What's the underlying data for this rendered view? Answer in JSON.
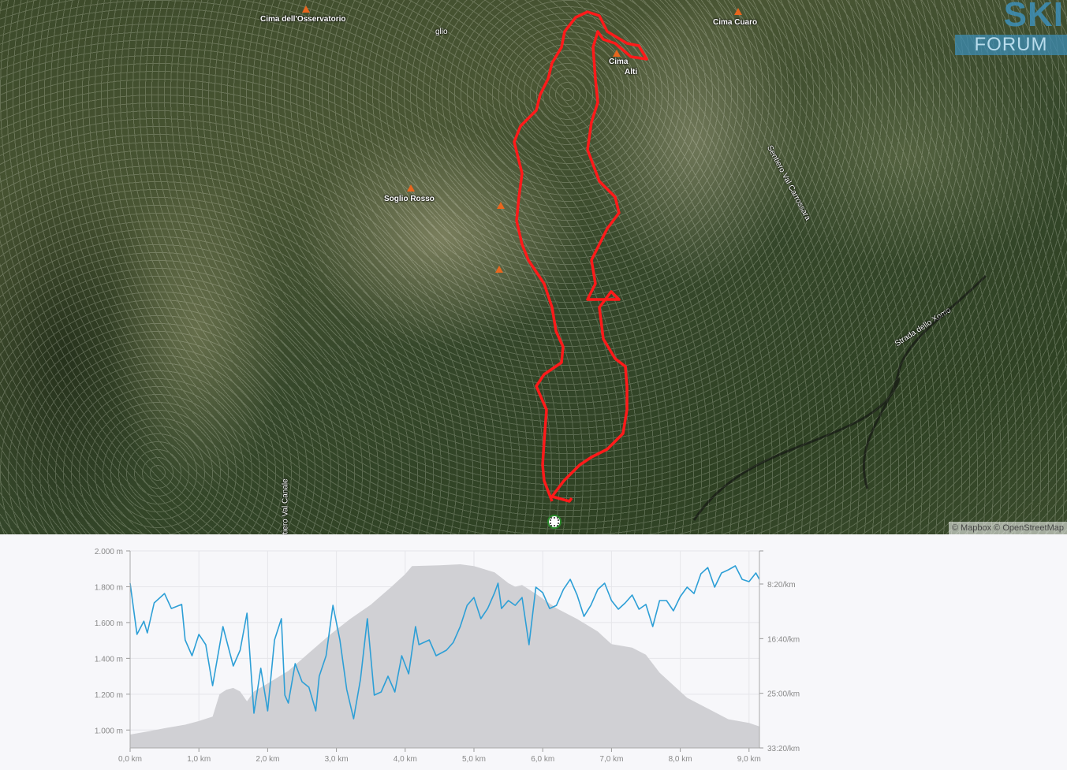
{
  "map": {
    "peaks": [
      {
        "name": "Cima dell'Osservatorio"
      },
      {
        "name": "Cima Cuaro"
      },
      {
        "name": "Soglio Rosso"
      },
      {
        "name": "Cima ... Alti"
      }
    ],
    "place_fragment": "glio",
    "cima_alti_line1": "Cima",
    "cima_alti_line2": "Alti",
    "roads": [
      "Sentiero Val Carrossara",
      "Strada dello Xomo",
      "Sentiero Val Canale"
    ],
    "route_color": "#ff1a1a",
    "logo": {
      "line1": "SKI",
      "line2": "FORUM"
    },
    "attribution": "© Mapbox © OpenStreetMap"
  },
  "chart_data": {
    "type": "area+line",
    "x_unit": "km",
    "xlim": [
      0,
      9.15
    ],
    "x_ticks": [
      "0,0 km",
      "1,0 km",
      "2,0 km",
      "3,0 km",
      "4,0 km",
      "5,0 km",
      "6,0 km",
      "7,0 km",
      "8,0 km",
      "9,0 km"
    ],
    "y_left_ticks": [
      "2.000 m",
      "1.800 m",
      "1.600 m",
      "1.400 m",
      "1.200 m",
      "1.000 m"
    ],
    "y_left_lim": [
      900,
      2000
    ],
    "y_right_ticks": [
      "8:20/km",
      "16:40/km",
      "25:00/km",
      "33:20/km"
    ],
    "y_right_lim": [
      "3:17",
      "33:20"
    ],
    "grid": true,
    "elevation_color": "#d0d0d4",
    "pace_color": "#2d9fd6",
    "elevation": [
      [
        0,
        975
      ],
      [
        0.3,
        995
      ],
      [
        0.5,
        1010
      ],
      [
        0.8,
        1030
      ],
      [
        1.0,
        1050
      ],
      [
        1.2,
        1075
      ],
      [
        1.3,
        1200
      ],
      [
        1.4,
        1225
      ],
      [
        1.5,
        1235
      ],
      [
        1.6,
        1215
      ],
      [
        1.7,
        1160
      ],
      [
        1.8,
        1215
      ],
      [
        2.0,
        1260
      ],
      [
        2.3,
        1330
      ],
      [
        2.6,
        1430
      ],
      [
        2.9,
        1530
      ],
      [
        3.2,
        1620
      ],
      [
        3.5,
        1700
      ],
      [
        3.8,
        1800
      ],
      [
        4.0,
        1870
      ],
      [
        4.1,
        1915
      ],
      [
        4.5,
        1920
      ],
      [
        4.8,
        1925
      ],
      [
        5.0,
        1915
      ],
      [
        5.3,
        1880
      ],
      [
        5.5,
        1820
      ],
      [
        5.6,
        1800
      ],
      [
        5.7,
        1810
      ],
      [
        5.9,
        1760
      ],
      [
        6.2,
        1680
      ],
      [
        6.5,
        1620
      ],
      [
        6.8,
        1550
      ],
      [
        7.0,
        1480
      ],
      [
        7.3,
        1460
      ],
      [
        7.5,
        1420
      ],
      [
        7.7,
        1320
      ],
      [
        7.9,
        1250
      ],
      [
        8.1,
        1180
      ],
      [
        8.4,
        1120
      ],
      [
        8.7,
        1060
      ],
      [
        9.0,
        1040
      ],
      [
        9.15,
        1020
      ]
    ],
    "pace": [
      [
        0,
        "8:13"
      ],
      [
        0.1,
        "16:01"
      ],
      [
        0.2,
        "14:00"
      ],
      [
        0.25,
        "15:47"
      ],
      [
        0.35,
        "11:13"
      ],
      [
        0.5,
        "9:47"
      ],
      [
        0.6,
        "12:04"
      ],
      [
        0.75,
        "11:27"
      ],
      [
        0.8,
        "16:52"
      ],
      [
        0.9,
        "19:16"
      ],
      [
        1.0,
        "16:01"
      ],
      [
        1.1,
        "17:35"
      ],
      [
        1.2,
        "23:50"
      ],
      [
        1.35,
        "14:49"
      ],
      [
        1.5,
        "20:50"
      ],
      [
        1.6,
        "18:26"
      ],
      [
        1.7,
        "12:47"
      ],
      [
        1.8,
        "28:02"
      ],
      [
        1.9,
        "21:11"
      ],
      [
        2.0,
        "27:41"
      ],
      [
        2.1,
        "16:52"
      ],
      [
        2.2,
        "13:37"
      ],
      [
        2.25,
        "25:17"
      ],
      [
        2.3,
        "26:29"
      ],
      [
        2.4,
        "20:28"
      ],
      [
        2.5,
        "23:14"
      ],
      [
        2.6,
        "24:05"
      ],
      [
        2.7,
        "27:41"
      ],
      [
        2.75,
        "22:24"
      ],
      [
        2.85,
        "19:16"
      ],
      [
        2.95,
        "11:35"
      ],
      [
        3.05,
        "16:52"
      ],
      [
        3.15,
        "24:26"
      ],
      [
        3.25,
        "28:53"
      ],
      [
        3.35,
        "22:52"
      ],
      [
        3.45,
        "13:37"
      ],
      [
        3.55,
        "25:17"
      ],
      [
        3.65,
        "24:48"
      ],
      [
        3.75,
        "22:24"
      ],
      [
        3.85,
        "24:48"
      ],
      [
        3.95,
        "19:16"
      ],
      [
        4.05,
        "22:02"
      ],
      [
        4.15,
        "14:49"
      ],
      [
        4.2,
        "17:35"
      ],
      [
        4.35,
        "16:52"
      ],
      [
        4.45,
        "19:16"
      ],
      [
        4.6,
        "18:26"
      ],
      [
        4.7,
        "17:14"
      ],
      [
        4.8,
        "14:49"
      ],
      [
        4.9,
        "11:35"
      ],
      [
        5.0,
        "10:23"
      ],
      [
        5.1,
        "13:37"
      ],
      [
        5.2,
        "12:04"
      ],
      [
        5.3,
        "9:39"
      ],
      [
        5.35,
        "8:13"
      ],
      [
        5.4,
        "12:04"
      ],
      [
        5.5,
        "10:51"
      ],
      [
        5.6,
        "11:35"
      ],
      [
        5.7,
        "10:23"
      ],
      [
        5.8,
        "17:35"
      ],
      [
        5.9,
        "8:49"
      ],
      [
        6.0,
        "9:39"
      ],
      [
        6.1,
        "12:04"
      ],
      [
        6.2,
        "11:35"
      ],
      [
        6.3,
        "9:10"
      ],
      [
        6.4,
        "7:37"
      ],
      [
        6.5,
        "10:01"
      ],
      [
        6.6,
        "13:16"
      ],
      [
        6.7,
        "11:35"
      ],
      [
        6.8,
        "9:10"
      ],
      [
        6.9,
        "8:13"
      ],
      [
        7.0,
        "10:51"
      ],
      [
        7.1,
        "12:11"
      ],
      [
        7.2,
        "11:13"
      ],
      [
        7.3,
        "10:01"
      ],
      [
        7.4,
        "12:11"
      ],
      [
        7.5,
        "11:27"
      ],
      [
        7.6,
        "14:49"
      ],
      [
        7.7,
        "10:51"
      ],
      [
        7.8,
        "10:51"
      ],
      [
        7.9,
        "12:25"
      ],
      [
        8.0,
        "10:15"
      ],
      [
        8.1,
        "8:49"
      ],
      [
        8.2,
        "9:47"
      ],
      [
        8.3,
        "6:46"
      ],
      [
        8.4,
        "5:49"
      ],
      [
        8.5,
        "8:49"
      ],
      [
        8.6,
        "6:39"
      ],
      [
        8.7,
        "6:10"
      ],
      [
        8.8,
        "5:34"
      ],
      [
        8.9,
        "7:37"
      ],
      [
        9.0,
        "7:58"
      ],
      [
        9.1,
        "6:39"
      ],
      [
        9.15,
        "7:37"
      ]
    ]
  }
}
